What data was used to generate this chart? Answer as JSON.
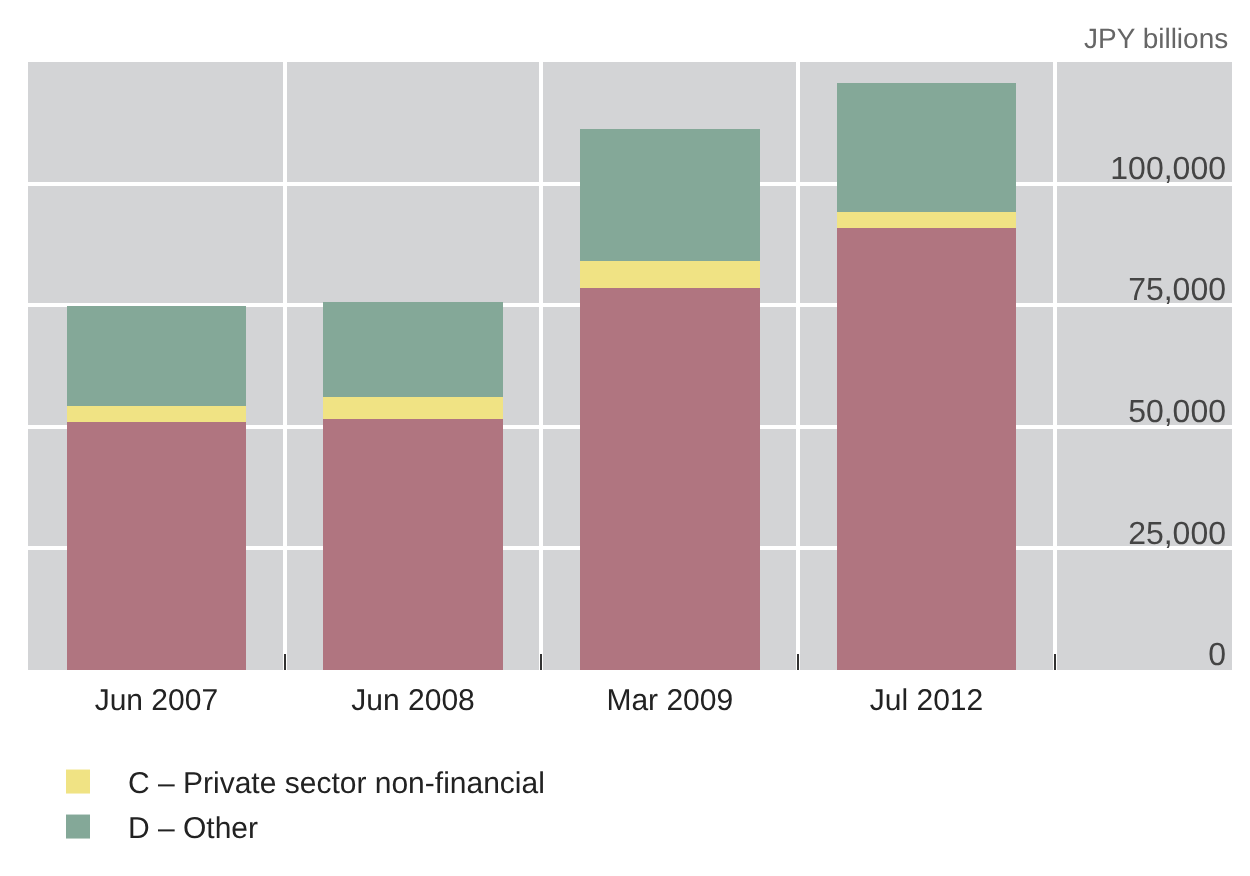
{
  "chart_data": {
    "type": "bar",
    "stacked": true,
    "ylabel": "JPY billions",
    "categories": [
      "Jun 2007",
      "Jun 2008",
      "Mar 2009",
      "Jul 2012"
    ],
    "series": [
      {
        "color": "#b07580",
        "values": [
          50900,
          51700,
          78600,
          90900
        ]
      },
      {
        "name": "C – Private sector non-financial",
        "color": "#f0e384",
        "values": [
          3300,
          4400,
          5500,
          3300
        ]
      },
      {
        "name": "D – Other",
        "color": "#84a898",
        "values": [
          20700,
          19600,
          27200,
          26500
        ]
      }
    ],
    "ylim": [
      0,
      125000
    ],
    "yticks": [
      {
        "value": 0,
        "label": "0"
      },
      {
        "value": 25000,
        "label": "25,000"
      },
      {
        "value": 50000,
        "label": "50,000"
      },
      {
        "value": 75000,
        "label": "75,000"
      },
      {
        "value": 100000,
        "label": "100,000"
      }
    ],
    "grid": true,
    "legend": "bottom"
  }
}
